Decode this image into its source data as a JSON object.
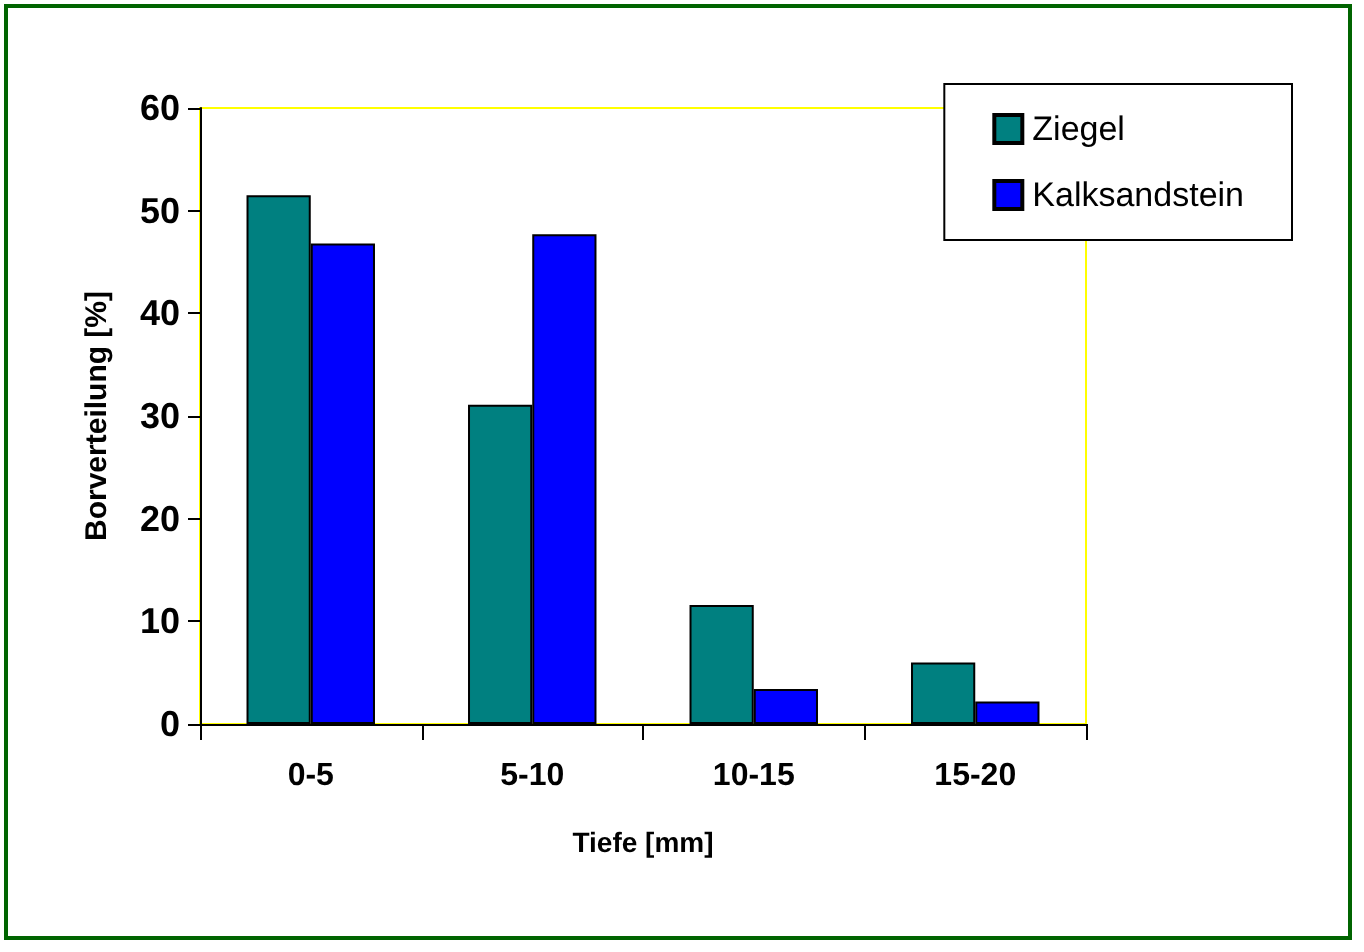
{
  "chart_data": {
    "type": "bar",
    "xlabel": "Tiefe [mm]",
    "ylabel": "Borverteilung [%]",
    "categories": [
      "0-5",
      "5-10",
      "10-15",
      "15-20"
    ],
    "series": [
      {
        "name": "Ziegel",
        "color": "#008080",
        "values": [
          51.5,
          31.1,
          11.6,
          6.0
        ]
      },
      {
        "name": "Kalksandstein",
        "color": "#0000ff",
        "values": [
          46.8,
          47.7,
          3.4,
          2.2
        ]
      }
    ],
    "ylim": [
      0,
      60
    ],
    "yticks": [
      0,
      10,
      20,
      30,
      40,
      50,
      60
    ],
    "grid": false,
    "legend": "top right"
  }
}
